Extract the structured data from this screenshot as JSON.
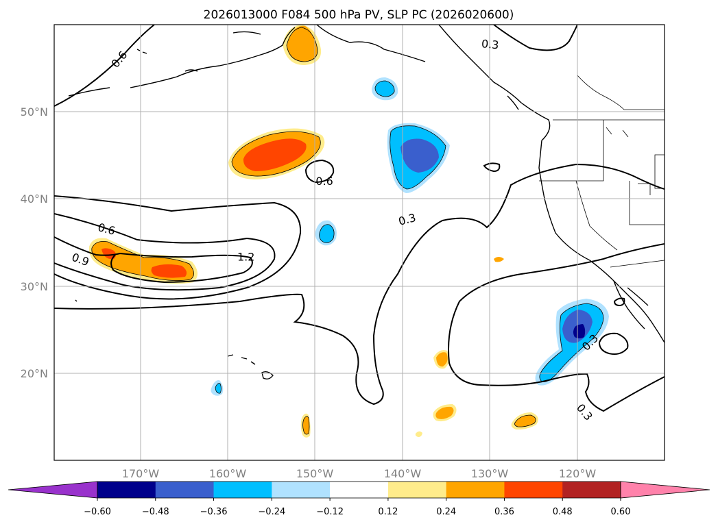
{
  "title": "2026013000 F084 500 hPa PV, SLP PC (2026020600)",
  "lon_ticks": [
    "170°W",
    "160°W",
    "150°W",
    "140°W",
    "130°W",
    "120°W"
  ],
  "lat_ticks": [
    "50°N",
    "40°N",
    "30°N",
    "20°N"
  ],
  "extent": {
    "lon": [
      -180,
      -110
    ],
    "lat": [
      10,
      60
    ]
  },
  "colorbar": {
    "ticks": [
      "−0.60",
      "−0.48",
      "−0.36",
      "−0.24",
      "−0.12",
      "0.12",
      "0.24",
      "0.36",
      "0.48",
      "0.60"
    ],
    "levels": [
      -0.6,
      -0.48,
      -0.36,
      -0.24,
      -0.12,
      0.12,
      0.24,
      0.36,
      0.48,
      0.6
    ],
    "colors": [
      "#9932cc",
      "#00008b",
      "#3a5fcd",
      "#00bfff",
      "#b0e2ff",
      "#ffffff",
      "#ffec8b",
      "#ffa500",
      "#ff4500",
      "#b22222",
      "#ff82ab"
    ],
    "extend": "both"
  },
  "contour_labels": [
    {
      "text": "0.6",
      "lon": -172.5,
      "lat": 56.0,
      "rot": -50
    },
    {
      "text": "0.3",
      "lon": -130.0,
      "lat": 57.7,
      "rot": 5
    },
    {
      "text": "0.6",
      "lon": -149.0,
      "lat": 42.0,
      "rot": 0
    },
    {
      "text": "0.6",
      "lon": -174.0,
      "lat": 36.5,
      "rot": 15
    },
    {
      "text": "0.9",
      "lon": -177.0,
      "lat": 33.0,
      "rot": 20
    },
    {
      "text": "1.2",
      "lon": -158.0,
      "lat": 33.3,
      "rot": 0
    },
    {
      "text": "0.3",
      "lon": -139.5,
      "lat": 37.6,
      "rot": -15
    },
    {
      "text": "0.3",
      "lon": -118.5,
      "lat": 23.5,
      "rot": -45
    },
    {
      "text": "0.3",
      "lon": -119.2,
      "lat": 15.5,
      "rot": 50
    }
  ],
  "pv_anomalies": [
    {
      "sign": "positive",
      "peak": "0.36",
      "lon": -150.3,
      "lat": 57.7
    },
    {
      "sign": "positive",
      "peak": "0.36",
      "lon": -155.3,
      "lat": 44.5
    },
    {
      "sign": "positive",
      "peak": "0.36",
      "lon": -170.0,
      "lat": 32.5
    },
    {
      "sign": "negative",
      "peak": "-0.24",
      "lon": -141.7,
      "lat": 52.5
    },
    {
      "sign": "negative",
      "peak": "-0.36",
      "lon": -139.0,
      "lat": 45.5
    },
    {
      "sign": "negative",
      "peak": "-0.24",
      "lon": -148.3,
      "lat": 36.3
    },
    {
      "sign": "negative",
      "peak": "-0.24",
      "lon": -161.3,
      "lat": 18.0
    },
    {
      "sign": "negative",
      "peak": "-0.48",
      "lon": -121.0,
      "lat": 24.0
    },
    {
      "sign": "positive",
      "peak": "0.24",
      "lon": -151.0,
      "lat": 14.0
    },
    {
      "sign": "positive",
      "peak": "0.24",
      "lon": -135.2,
      "lat": 21.3
    },
    {
      "sign": "positive",
      "peak": "0.24",
      "lon": -134.8,
      "lat": 15.5
    },
    {
      "sign": "positive",
      "peak": "0.24",
      "lon": -126.2,
      "lat": 14.5
    }
  ]
}
